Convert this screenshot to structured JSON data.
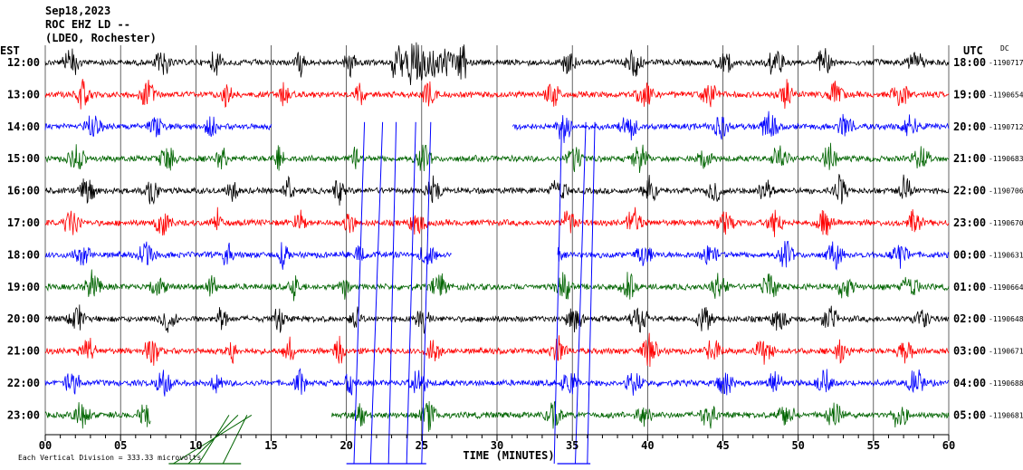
{
  "header": {
    "line1": "Sep18,2023",
    "line2": "ROC EHZ LD --",
    "line3": "(LDEO, Rochester)"
  },
  "left_tz": "EST",
  "right_tz": "UTC",
  "dc_label": "DC",
  "footer": {
    "xlabel": "TIME (MINUTES)",
    "scale_note": "Each Vertical Division =  333.33 microvolts"
  },
  "colors": {
    "black": "#000000",
    "red": "#ff0000",
    "blue": "#0000ff",
    "green": "#006400",
    "grid": "#000000"
  },
  "chart_data": {
    "type": "line",
    "title": "ROC EHZ LD --",
    "xlabel": "TIME (MINUTES)",
    "ylabel": "",
    "xlim": [
      0,
      60
    ],
    "x_ticks": [
      "00",
      "05",
      "10",
      "15",
      "20",
      "25",
      "30",
      "35",
      "40",
      "45",
      "50",
      "55",
      "60"
    ],
    "grid": true,
    "vertical_grid_every_minutes": 5,
    "rows": [
      {
        "est": "12:00",
        "utc": "18:00",
        "dc": "-1190717",
        "color": "black"
      },
      {
        "est": "13:00",
        "utc": "19:00",
        "dc": "-1190654",
        "color": "red"
      },
      {
        "est": "14:00",
        "utc": "20:00",
        "dc": "-1190712",
        "color": "blue"
      },
      {
        "est": "15:00",
        "utc": "21:00",
        "dc": "-1190683",
        "color": "green"
      },
      {
        "est": "16:00",
        "utc": "22:00",
        "dc": "-1190706",
        "color": "black"
      },
      {
        "est": "17:00",
        "utc": "23:00",
        "dc": "-1190670",
        "color": "red"
      },
      {
        "est": "18:00",
        "utc": "00:00",
        "dc": "-1190631",
        "color": "blue"
      },
      {
        "est": "19:00",
        "utc": "01:00",
        "dc": "-1190664",
        "color": "green"
      },
      {
        "est": "20:00",
        "utc": "02:00",
        "dc": "-1190648",
        "color": "black"
      },
      {
        "est": "21:00",
        "utc": "03:00",
        "dc": "-1190671",
        "color": "red"
      },
      {
        "est": "22:00",
        "utc": "04:00",
        "dc": "-1190688",
        "color": "blue"
      },
      {
        "est": "23:00",
        "utc": "05:00",
        "dc": "-1190681",
        "color": "green"
      }
    ],
    "bursts_minutes": [
      [
        1,
        2.5
      ],
      [
        6,
        7.5
      ],
      [
        10.5,
        11.5
      ],
      [
        15,
        16
      ],
      [
        19,
        20
      ],
      [
        24,
        25.5
      ],
      [
        33,
        34.5
      ],
      [
        38,
        39.5
      ],
      [
        43,
        44.5
      ],
      [
        47,
        48.5
      ],
      [
        51,
        52.5
      ],
      [
        56,
        57.5
      ]
    ],
    "gaps": [
      {
        "row": 2,
        "from_min": 15,
        "to_min": 31
      },
      {
        "row": 6,
        "from_min": 27,
        "to_min": 34
      },
      {
        "row": 11,
        "from_min": 7,
        "to_min": 19
      }
    ]
  }
}
